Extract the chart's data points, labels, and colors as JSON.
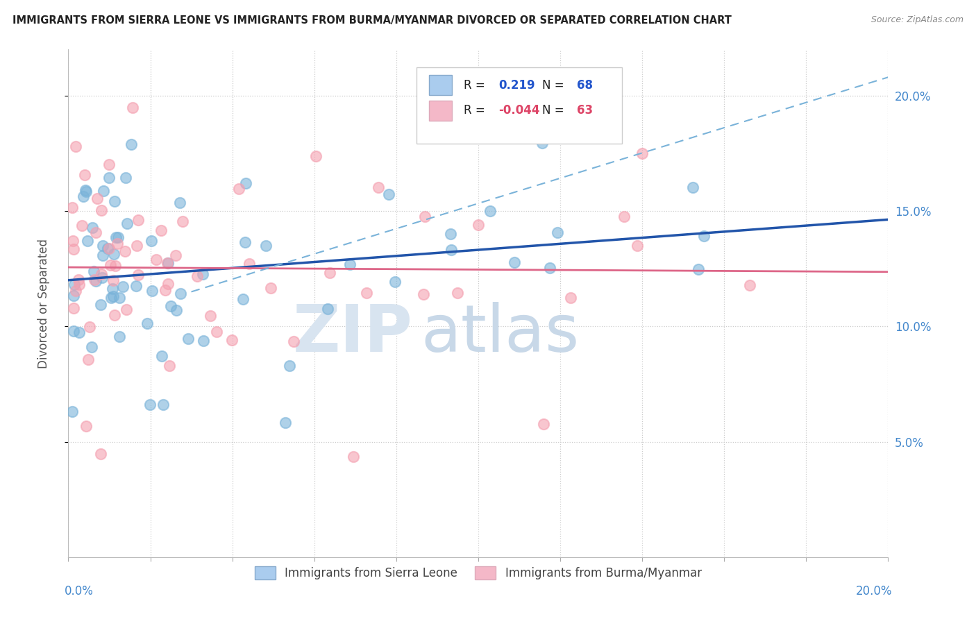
{
  "title": "IMMIGRANTS FROM SIERRA LEONE VS IMMIGRANTS FROM BURMA/MYANMAR DIVORCED OR SEPARATED CORRELATION CHART",
  "source": "Source: ZipAtlas.com",
  "ylabel": "Divorced or Separated",
  "xlim": [
    0.0,
    0.2
  ],
  "ylim": [
    0.0,
    0.22
  ],
  "yticks_right": [
    0.05,
    0.1,
    0.15,
    0.2
  ],
  "ytick_labels_right": [
    "5.0%",
    "10.0%",
    "15.0%",
    "20.0%"
  ],
  "series1_color": "#7ab3d9",
  "series2_color": "#f4a0b0",
  "series1_line_color": "#2255aa",
  "series2_line_color": "#dd6688",
  "series1_label": "Immigrants from Sierra Leone",
  "series2_label": "Immigrants from Burma/Myanmar",
  "R1": 0.219,
  "N1": 68,
  "R2": -0.044,
  "N2": 63,
  "background_color": "#ffffff",
  "grid_color": "#cccccc",
  "watermark_zip_color": "#d0dce8",
  "watermark_atlas_color": "#b8c8d8"
}
